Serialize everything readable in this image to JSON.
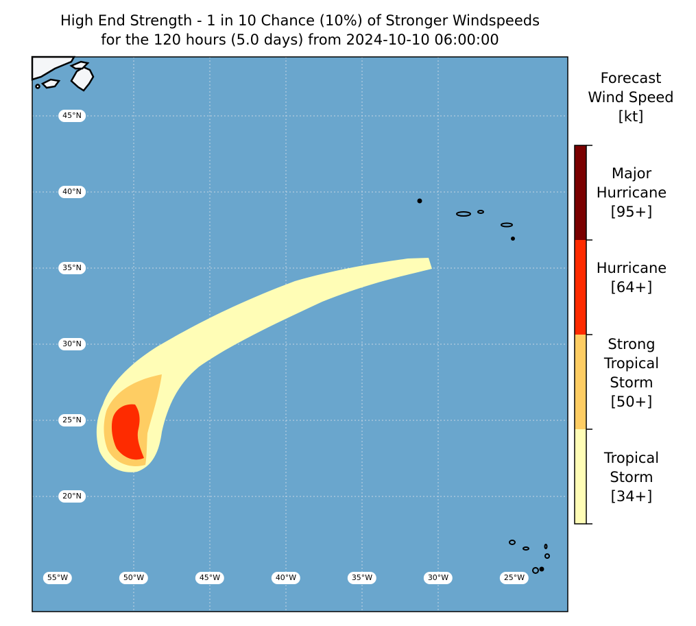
{
  "title": {
    "line1": "High End Strength - 1 in 10 Chance (10%) of Stronger Windspeeds",
    "line2": "for the 120 hours (5.0 days) from 2024-10-10 06:00:00"
  },
  "map": {
    "lat_labels": [
      "45°N",
      "40°N",
      "35°N",
      "30°N",
      "25°N",
      "20°N"
    ],
    "lon_labels": [
      "55°W",
      "50°W",
      "45°W",
      "40°W",
      "35°W",
      "30°W",
      "25°W"
    ],
    "colors": {
      "ocean": "#6aa6cd",
      "tropical_storm": "#fffdb6",
      "strong_tropical_storm": "#fecd63",
      "hurricane": "#fe2b00",
      "major_hurricane": "#7a0000",
      "land": "#f5f6f8"
    }
  },
  "colorbar": {
    "title_line1": "Forecast",
    "title_line2": "Wind Speed",
    "title_line3": "[kt]",
    "categories": [
      {
        "lines": [
          "Major",
          "Hurricane",
          "[95+]"
        ],
        "color": "#7a0000"
      },
      {
        "lines": [
          "Hurricane",
          "[64+]"
        ],
        "color": "#fe2b00"
      },
      {
        "lines": [
          "Strong",
          "Tropical",
          "Storm",
          "[50+]"
        ],
        "color": "#fecd63"
      },
      {
        "lines": [
          "Tropical",
          "Storm",
          "[34+]"
        ],
        "color": "#fffdb6"
      }
    ]
  }
}
